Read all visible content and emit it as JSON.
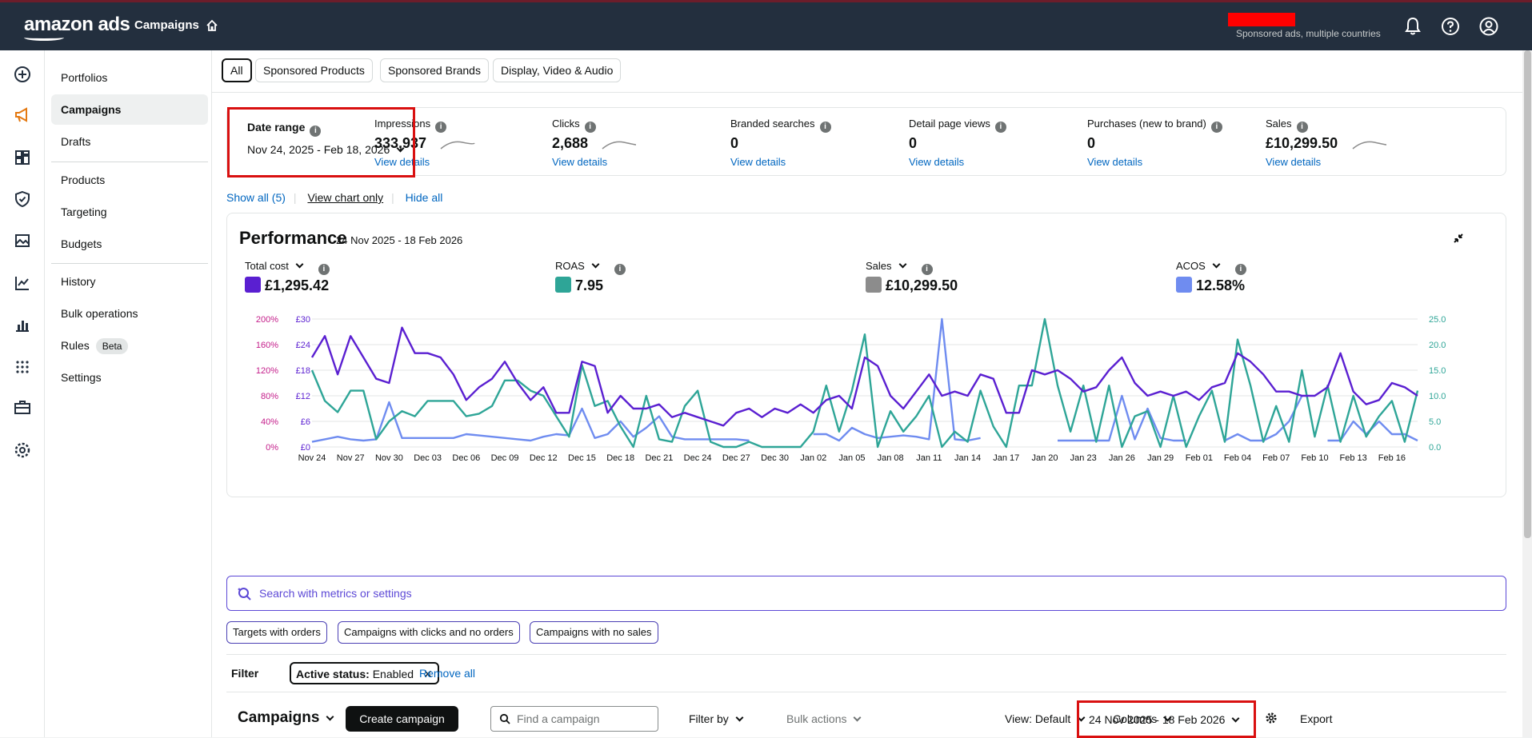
{
  "topbar": {
    "logo": "amazon ads",
    "nav_title": "Campaigns",
    "account_sub": "Sponsored ads, multiple countries"
  },
  "sidenav": {
    "items": [
      {
        "label": "Portfolios"
      },
      {
        "label": "Campaigns"
      },
      {
        "label": "Drafts"
      },
      {
        "label": "Products"
      },
      {
        "label": "Targeting"
      },
      {
        "label": "Budgets"
      },
      {
        "label": "History"
      },
      {
        "label": "Bulk operations"
      },
      {
        "label": "Rules",
        "badge": "Beta"
      },
      {
        "label": "Settings"
      }
    ]
  },
  "tabs": [
    "All",
    "Sponsored Products",
    "Sponsored Brands",
    "Display, Video & Audio"
  ],
  "date_range": {
    "label": "Date range",
    "value": "Nov 24, 2025 - Feb 18, 2026"
  },
  "kpis": [
    {
      "label": "Impressions",
      "value": "333,937",
      "link": "View details",
      "sparkline": true
    },
    {
      "label": "Clicks",
      "value": "2,688",
      "link": "View details",
      "sparkline": true
    },
    {
      "label": "Branded searches",
      "value": "0",
      "link": "View details",
      "sparkline": false
    },
    {
      "label": "Detail page views",
      "value": "0",
      "link": "View details",
      "sparkline": false
    },
    {
      "label": "Purchases (new to brand)",
      "value": "0",
      "link": "View details",
      "sparkline": false
    },
    {
      "label": "Sales",
      "value": "£10,299.50",
      "link": "View details",
      "sparkline": true
    }
  ],
  "show_row": {
    "show_all": "Show all (5)",
    "chart_only": "View chart only",
    "hide_all": "Hide all"
  },
  "performance": {
    "title": "Performance",
    "dates": "24 Nov 2025 - 18 Feb 2026",
    "metrics": [
      {
        "label": "Total cost",
        "value": "£1,295.42",
        "color": "#5a1fd1"
      },
      {
        "label": "ROAS",
        "value": "7.95",
        "color": "#2ea597"
      },
      {
        "label": "Sales",
        "value": "£10,299.50",
        "color": "#8c8c8c"
      },
      {
        "label": "ACOS",
        "value": "12.58%",
        "color": "#6f8cf0"
      }
    ]
  },
  "chart_data": {
    "type": "line",
    "x": [
      "Nov 24",
      "Nov 25",
      "Nov 26",
      "Nov 27",
      "Nov 28",
      "Nov 29",
      "Nov 30",
      "Dec 01",
      "Dec 02",
      "Dec 03",
      "Dec 04",
      "Dec 05",
      "Dec 06",
      "Dec 07",
      "Dec 08",
      "Dec 09",
      "Dec 10",
      "Dec 11",
      "Dec 12",
      "Dec 13",
      "Dec 14",
      "Dec 15",
      "Dec 16",
      "Dec 17",
      "Dec 18",
      "Dec 19",
      "Dec 20",
      "Dec 21",
      "Dec 22",
      "Dec 23",
      "Dec 24",
      "Dec 25",
      "Dec 26",
      "Dec 27",
      "Dec 28",
      "Dec 29",
      "Dec 30",
      "Dec 31",
      "Jan 01",
      "Jan 02",
      "Jan 03",
      "Jan 04",
      "Jan 05",
      "Jan 06",
      "Jan 07",
      "Jan 08",
      "Jan 09",
      "Jan 10",
      "Jan 11",
      "Jan 12",
      "Jan 13",
      "Jan 14",
      "Jan 15",
      "Jan 16",
      "Jan 17",
      "Jan 18",
      "Jan 19",
      "Jan 20",
      "Jan 21",
      "Jan 22",
      "Jan 23",
      "Jan 24",
      "Jan 25",
      "Jan 26",
      "Jan 27",
      "Jan 28",
      "Jan 29",
      "Jan 30",
      "Jan 31",
      "Feb 01",
      "Feb 02",
      "Feb 03",
      "Feb 04",
      "Feb 05",
      "Feb 06",
      "Feb 07",
      "Feb 08",
      "Feb 09",
      "Feb 10",
      "Feb 11",
      "Feb 12",
      "Feb 13",
      "Feb 14",
      "Feb 15",
      "Feb 16",
      "Feb 17",
      "Feb 18"
    ],
    "x_tick_labels": [
      "Nov 24",
      "Nov 27",
      "Nov 30",
      "Dec 03",
      "Dec 06",
      "Dec 09",
      "Dec 12",
      "Dec 15",
      "Dec 18",
      "Dec 21",
      "Dec 24",
      "Dec 27",
      "Dec 30",
      "Jan 02",
      "Jan 05",
      "Jan 08",
      "Jan 11",
      "Jan 14",
      "Jan 17",
      "Jan 20",
      "Jan 23",
      "Jan 26",
      "Jan 29",
      "Feb 01",
      "Feb 04",
      "Feb 07",
      "Feb 10",
      "Feb 13",
      "Feb 16"
    ],
    "y_left_acos_ticks": [
      "0%",
      "40%",
      "80%",
      "120%",
      "160%",
      "200%"
    ],
    "y_left_cost_ticks": [
      "£0",
      "£6",
      "£12",
      "£18",
      "£24",
      "£30"
    ],
    "y_right_ticks": [
      "0.0",
      "5.0",
      "10.0",
      "15.0",
      "20.0",
      "25.0"
    ],
    "ylim_cost": [
      0,
      30
    ],
    "ylim_roas": [
      0,
      25
    ],
    "ylim_acos": [
      0,
      200
    ],
    "series": [
      {
        "name": "Total cost",
        "axis": "cost",
        "color": "#5a1fd1",
        "values": [
          21,
          26,
          17,
          26,
          21,
          16,
          15,
          28,
          22,
          22,
          21,
          17,
          11,
          14,
          16,
          20,
          15,
          11,
          14,
          8,
          8,
          20,
          19,
          8,
          12,
          9,
          9,
          10,
          7,
          8,
          7,
          6,
          5,
          8,
          9,
          7,
          9,
          8,
          10,
          8,
          11,
          12,
          9,
          21,
          19,
          12,
          9,
          13,
          17,
          12,
          13,
          12,
          17,
          16,
          8,
          8,
          18,
          17,
          18,
          16,
          13,
          14,
          18,
          21,
          15,
          12,
          13,
          12,
          13,
          11,
          14,
          15,
          22,
          20,
          17,
          13,
          13,
          12,
          12,
          14,
          22,
          13,
          10,
          11,
          15,
          14,
          12
        ]
      },
      {
        "name": "ROAS",
        "axis": "roas",
        "color": "#2ea597",
        "values": [
          15,
          9,
          6.8,
          11,
          11,
          1.5,
          5,
          7,
          6,
          9,
          9,
          9,
          6,
          6.5,
          8,
          13,
          13,
          11,
          10,
          6,
          2,
          16,
          8,
          9,
          4,
          0,
          10,
          1.5,
          1,
          8,
          11,
          1,
          0,
          0,
          1,
          0,
          0,
          0,
          0,
          3,
          12,
          3,
          11,
          22,
          0,
          7,
          3,
          6,
          10,
          0,
          3,
          1,
          11,
          4,
          0,
          12,
          12,
          25,
          12,
          3,
          12,
          1,
          12,
          0,
          6,
          7,
          0,
          10,
          0,
          6,
          11,
          1,
          21,
          12,
          1,
          8,
          1,
          15,
          2,
          12,
          1,
          10,
          2,
          6,
          9,
          1,
          11
        ]
      },
      {
        "name": "ACOS",
        "axis": "acos",
        "color": "#6f8cf0",
        "values": [
          8,
          12,
          16,
          12,
          10,
          12,
          70,
          14,
          14,
          14,
          14,
          14,
          20,
          18,
          16,
          14,
          12,
          10,
          16,
          20,
          18,
          60,
          14,
          20,
          40,
          16,
          30,
          48,
          16,
          12,
          12,
          12,
          12,
          12,
          10,
          null,
          null,
          null,
          null,
          20,
          20,
          10,
          30,
          20,
          14,
          16,
          18,
          16,
          12,
          220,
          12,
          10,
          14,
          null,
          null,
          null,
          null,
          null,
          10,
          10,
          10,
          10,
          10,
          80,
          12,
          60,
          14,
          10,
          10,
          null,
          null,
          10,
          20,
          10,
          10,
          20,
          40,
          80,
          null,
          10,
          10,
          40,
          20,
          40,
          20,
          20,
          10
        ]
      }
    ]
  },
  "search": {
    "placeholder": "Search with metrics or settings"
  },
  "chips": [
    "Targets with orders",
    "Campaigns with clicks and no orders",
    "Campaigns with no sales"
  ],
  "filter": {
    "label": "Filter",
    "status_key": "Active status:",
    "status_value": "Enabled",
    "remove_all": "Remove all"
  },
  "toolbar": {
    "title": "Campaigns",
    "create": "Create campaign",
    "find_placeholder": "Find a campaign",
    "filter_by": "Filter by",
    "bulk_actions": "Bulk actions",
    "view": "View: Default",
    "columns": "Columns",
    "date": "24 Nov 2025 - 18 Feb 2026",
    "export": "Export"
  }
}
